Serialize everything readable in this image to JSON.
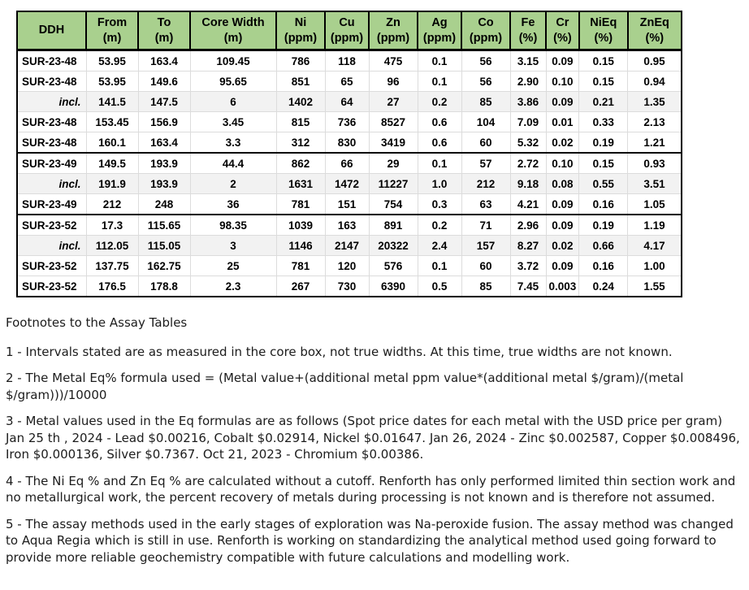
{
  "table": {
    "columns": [
      {
        "label": "DDH",
        "unit": ""
      },
      {
        "label": "From",
        "unit": "(m)"
      },
      {
        "label": "To",
        "unit": "(m)"
      },
      {
        "label": "Core Width",
        "unit": "(m)"
      },
      {
        "label": "Ni",
        "unit": "(ppm)"
      },
      {
        "label": "Cu",
        "unit": "(ppm)"
      },
      {
        "label": "Zn",
        "unit": "(ppm)"
      },
      {
        "label": "Ag",
        "unit": "(ppm)"
      },
      {
        "label": "Co",
        "unit": "(ppm)"
      },
      {
        "label": "Fe",
        "unit": "(%)"
      },
      {
        "label": "Cr",
        "unit": "(%)"
      },
      {
        "label": "NiEq",
        "unit": "(%)"
      },
      {
        "label": "ZnEq",
        "unit": "(%)"
      }
    ],
    "rows": [
      {
        "ddh": "SUR-23-48",
        "incl": false,
        "shaded": false,
        "group_start": false,
        "values": [
          "53.95",
          "163.4",
          "109.45",
          "786",
          "118",
          "475",
          "0.1",
          "56",
          "3.15",
          "0.09",
          "0.15",
          "0.95"
        ]
      },
      {
        "ddh": "SUR-23-48",
        "incl": false,
        "shaded": false,
        "group_start": false,
        "values": [
          "53.95",
          "149.6",
          "95.65",
          "851",
          "65",
          "96",
          "0.1",
          "56",
          "2.90",
          "0.10",
          "0.15",
          "0.94"
        ]
      },
      {
        "ddh": "incl.",
        "incl": true,
        "shaded": true,
        "group_start": false,
        "values": [
          "141.5",
          "147.5",
          "6",
          "1402",
          "64",
          "27",
          "0.2",
          "85",
          "3.86",
          "0.09",
          "0.21",
          "1.35"
        ]
      },
      {
        "ddh": "SUR-23-48",
        "incl": false,
        "shaded": false,
        "group_start": false,
        "values": [
          "153.45",
          "156.9",
          "3.45",
          "815",
          "736",
          "8527",
          "0.6",
          "104",
          "7.09",
          "0.01",
          "0.33",
          "2.13"
        ]
      },
      {
        "ddh": "SUR-23-48",
        "incl": false,
        "shaded": false,
        "group_start": false,
        "values": [
          "160.1",
          "163.4",
          "3.3",
          "312",
          "830",
          "3419",
          "0.6",
          "60",
          "5.32",
          "0.02",
          "0.19",
          "1.21"
        ]
      },
      {
        "ddh": "SUR-23-49",
        "incl": false,
        "shaded": false,
        "group_start": true,
        "values": [
          "149.5",
          "193.9",
          "44.4",
          "862",
          "66",
          "29",
          "0.1",
          "57",
          "2.72",
          "0.10",
          "0.15",
          "0.93"
        ]
      },
      {
        "ddh": "incl.",
        "incl": true,
        "shaded": true,
        "group_start": false,
        "values": [
          "191.9",
          "193.9",
          "2",
          "1631",
          "1472",
          "11227",
          "1.0",
          "212",
          "9.18",
          "0.08",
          "0.55",
          "3.51"
        ]
      },
      {
        "ddh": "SUR-23-49",
        "incl": false,
        "shaded": false,
        "group_start": false,
        "values": [
          "212",
          "248",
          "36",
          "781",
          "151",
          "754",
          "0.3",
          "63",
          "4.21",
          "0.09",
          "0.16",
          "1.05"
        ]
      },
      {
        "ddh": "SUR-23-52",
        "incl": false,
        "shaded": false,
        "group_start": true,
        "values": [
          "17.3",
          "115.65",
          "98.35",
          "1039",
          "163",
          "891",
          "0.2",
          "71",
          "2.96",
          "0.09",
          "0.19",
          "1.19"
        ]
      },
      {
        "ddh": "incl.",
        "incl": true,
        "shaded": true,
        "group_start": false,
        "values": [
          "112.05",
          "115.05",
          "3",
          "1146",
          "2147",
          "20322",
          "2.4",
          "157",
          "8.27",
          "0.02",
          "0.66",
          "4.17"
        ]
      },
      {
        "ddh": "SUR-23-52",
        "incl": false,
        "shaded": false,
        "group_start": false,
        "values": [
          "137.75",
          "162.75",
          "25",
          "781",
          "120",
          "576",
          "0.1",
          "60",
          "3.72",
          "0.09",
          "0.16",
          "1.00"
        ]
      },
      {
        "ddh": "SUR-23-52",
        "incl": false,
        "shaded": false,
        "group_start": false,
        "values": [
          "176.5",
          "178.8",
          "2.3",
          "267",
          "730",
          "6390",
          "0.5",
          "85",
          "7.45",
          "0.003",
          "0.24",
          "1.55"
        ]
      }
    ],
    "colors": {
      "header_bg": "#a9d08e",
      "shaded_row_bg": "#f2f2f2",
      "border": "#000000",
      "gridline": "#dcdcdc"
    }
  },
  "footnotes": {
    "title": "Footnotes to the Assay Tables",
    "items": [
      "1 - Intervals stated are as measured in the core box, not true widths. At this time, true widths are not known.",
      "2 - The Metal Eq% formula used = (Metal value+(additional metal ppm value*(additional metal $/gram)/(metal $/gram)))/10000",
      "3 - Metal values used in the Eq formulas are as follows (Spot price dates for each metal with the USD price per gram) Jan 25 th , 2024 - Lead $0.00216, Cobalt $0.02914, Nickel $0.01647. Jan 26, 2024 - Zinc $0.002587, Copper $0.008496, Iron $0.000136, Silver $0.7367. Oct 21, 2023 - Chromium $0.00386.",
      "4 - The Ni Eq % and Zn Eq % are calculated without a cutoff. Renforth has only performed limited thin section work and no metallurgical work, the percent recovery of metals during processing is not known and is therefore not assumed.",
      "5 - The assay methods used in the early stages of exploration was Na-peroxide fusion. The assay method was changed to Aqua Regia which is still in use. Renforth is working on standardizing the analytical method used going forward to provide more reliable geochemistry compatible with future calculations and modelling work."
    ]
  }
}
